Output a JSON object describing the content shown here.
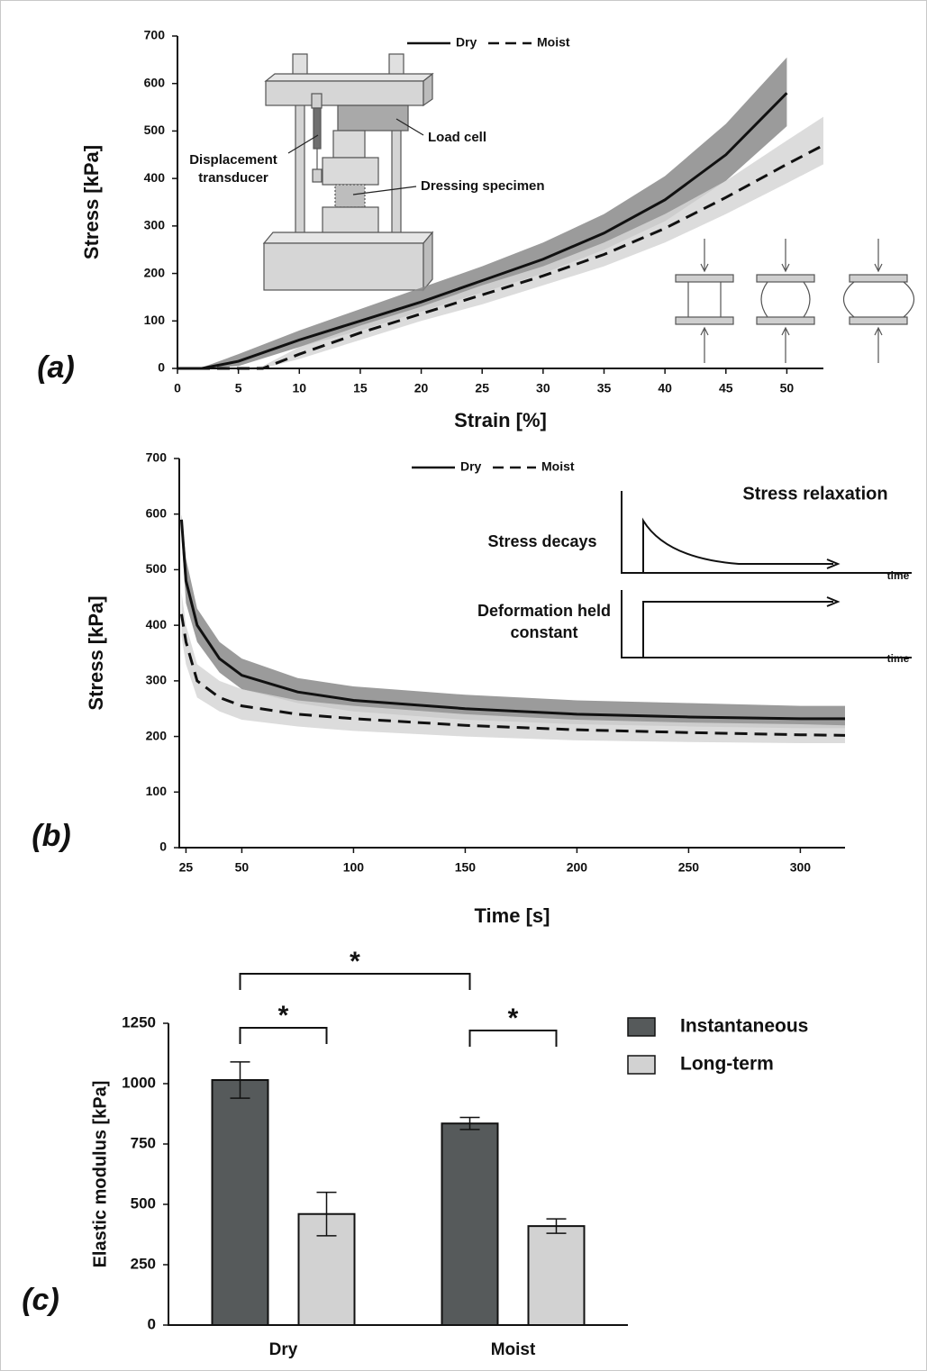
{
  "chart_data": [
    {
      "type": "line",
      "panel_label": "(a)",
      "x_label": "Strain [%]",
      "y_label": "Stress [kPa]",
      "xlim": [
        0,
        53
      ],
      "xticks": [
        0,
        5,
        10,
        15,
        20,
        25,
        30,
        35,
        40,
        45,
        50
      ],
      "ylim": [
        0,
        700
      ],
      "yticks": [
        0,
        100,
        200,
        300,
        400,
        500,
        600,
        700
      ],
      "legend": "top",
      "annotations": [
        "Displacement transducer",
        "Load cell",
        "Dressing specimen"
      ],
      "series": [
        {
          "name": "Dry",
          "color": "#111111",
          "band_color": "#8a8a8a",
          "line_style": "solid",
          "x": [
            0,
            2,
            5,
            10,
            15,
            20,
            25,
            30,
            35,
            40,
            45,
            50
          ],
          "y": [
            0,
            0,
            15,
            60,
            100,
            140,
            185,
            230,
            285,
            355,
            450,
            580
          ],
          "upper": [
            0,
            2,
            30,
            80,
            125,
            170,
            215,
            265,
            325,
            405,
            515,
            655
          ],
          "lower": [
            0,
            0,
            5,
            45,
            80,
            120,
            160,
            200,
            250,
            310,
            395,
            510
          ]
        },
        {
          "name": "Moist",
          "color": "#111111",
          "band_color": "#d6d6d6",
          "line_style": "dashed",
          "x": [
            0,
            5,
            7,
            10,
            15,
            20,
            25,
            30,
            35,
            40,
            45,
            50,
            53
          ],
          "y": [
            0,
            0,
            0,
            30,
            75,
            115,
            155,
            195,
            240,
            295,
            360,
            430,
            470
          ],
          "upper": [
            0,
            0,
            5,
            45,
            90,
            130,
            175,
            215,
            265,
            325,
            395,
            480,
            530
          ],
          "lower": [
            0,
            0,
            0,
            20,
            60,
            100,
            135,
            175,
            215,
            265,
            325,
            390,
            430
          ]
        }
      ]
    },
    {
      "type": "line",
      "panel_label": "(b)",
      "x_label": "Time [s]",
      "y_label": "Stress [kPa]",
      "xlim": [
        22,
        320
      ],
      "xticks": [
        25,
        50,
        100,
        150,
        200,
        250,
        300
      ],
      "ylim": [
        0,
        700
      ],
      "yticks": [
        0,
        100,
        200,
        300,
        400,
        500,
        600,
        700
      ],
      "legend": "top",
      "inset": {
        "title": "Stress relaxation",
        "upper_label": "Stress decays",
        "lower_label": "Deformation held constant",
        "axis_labels": [
          "time",
          "time"
        ]
      },
      "series": [
        {
          "name": "Dry",
          "color": "#111111",
          "band_color": "#8a8a8a",
          "line_style": "solid",
          "x": [
            23,
            25,
            30,
            40,
            50,
            75,
            100,
            150,
            200,
            250,
            300,
            320
          ],
          "y": [
            590,
            480,
            400,
            340,
            310,
            280,
            265,
            250,
            240,
            235,
            232,
            232
          ],
          "upper": [
            600,
            520,
            430,
            370,
            340,
            305,
            290,
            275,
            265,
            260,
            255,
            255
          ],
          "lower": [
            560,
            440,
            370,
            315,
            285,
            260,
            245,
            230,
            222,
            218,
            215,
            215
          ]
        },
        {
          "name": "Moist",
          "color": "#111111",
          "band_color": "#d6d6d6",
          "line_style": "dashed",
          "x": [
            23,
            25,
            30,
            40,
            50,
            75,
            100,
            150,
            200,
            250,
            300,
            320
          ],
          "y": [
            420,
            370,
            300,
            270,
            255,
            240,
            232,
            220,
            212,
            207,
            203,
            202
          ],
          "upper": [
            460,
            400,
            330,
            300,
            285,
            265,
            255,
            240,
            230,
            225,
            222,
            220
          ],
          "lower": [
            380,
            330,
            270,
            245,
            230,
            218,
            210,
            200,
            193,
            190,
            188,
            188
          ]
        }
      ]
    },
    {
      "type": "bar",
      "panel_label": "(c)",
      "y_label": "Elastic modulus [kPa]",
      "categories": [
        "Dry",
        "Moist"
      ],
      "ylim": [
        0,
        1250
      ],
      "yticks": [
        0,
        250,
        500,
        750,
        1000,
        1250
      ],
      "legend": "right",
      "significance": [
        "*",
        "*",
        "*"
      ],
      "series": [
        {
          "name": "Instantaneous",
          "color": "#565a5b",
          "values": [
            1015,
            835
          ],
          "errors": [
            75,
            25
          ]
        },
        {
          "name": "Long-term",
          "color": "#d2d2d2",
          "values": [
            460,
            410
          ],
          "errors": [
            90,
            30
          ]
        }
      ]
    }
  ]
}
